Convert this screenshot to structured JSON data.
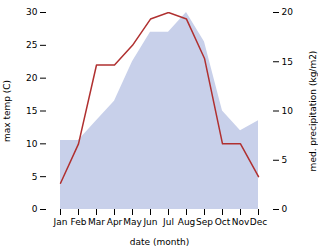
{
  "chart_data": {
    "type": "line",
    "categories": [
      "Jan",
      "Feb",
      "Mar",
      "Apr",
      "May",
      "Jun",
      "Jul",
      "Aug",
      "Sep",
      "Oct",
      "Nov",
      "Dec"
    ],
    "xlabel": "date (month)",
    "ylabel": "max temp (C)",
    "y2label": "med. precipitation (kg/m2)",
    "series": [
      {
        "type": "area",
        "axis": "y2",
        "color": "#c8d0ea",
        "values": [
          7,
          7,
          9,
          11,
          15,
          18,
          18,
          20,
          17,
          10,
          8,
          9
        ]
      },
      {
        "type": "line",
        "color": "#b03030",
        "values": [
          4,
          10,
          22,
          22,
          25,
          29,
          30,
          29,
          23,
          10,
          10,
          5
        ]
      }
    ],
    "ylim": [
      0,
      30
    ],
    "yticks": [
      0,
      5,
      10,
      15,
      20,
      25,
      30
    ],
    "y2lim": [
      0,
      20
    ],
    "y2ticks": [
      0,
      5,
      10,
      15,
      20
    ]
  }
}
